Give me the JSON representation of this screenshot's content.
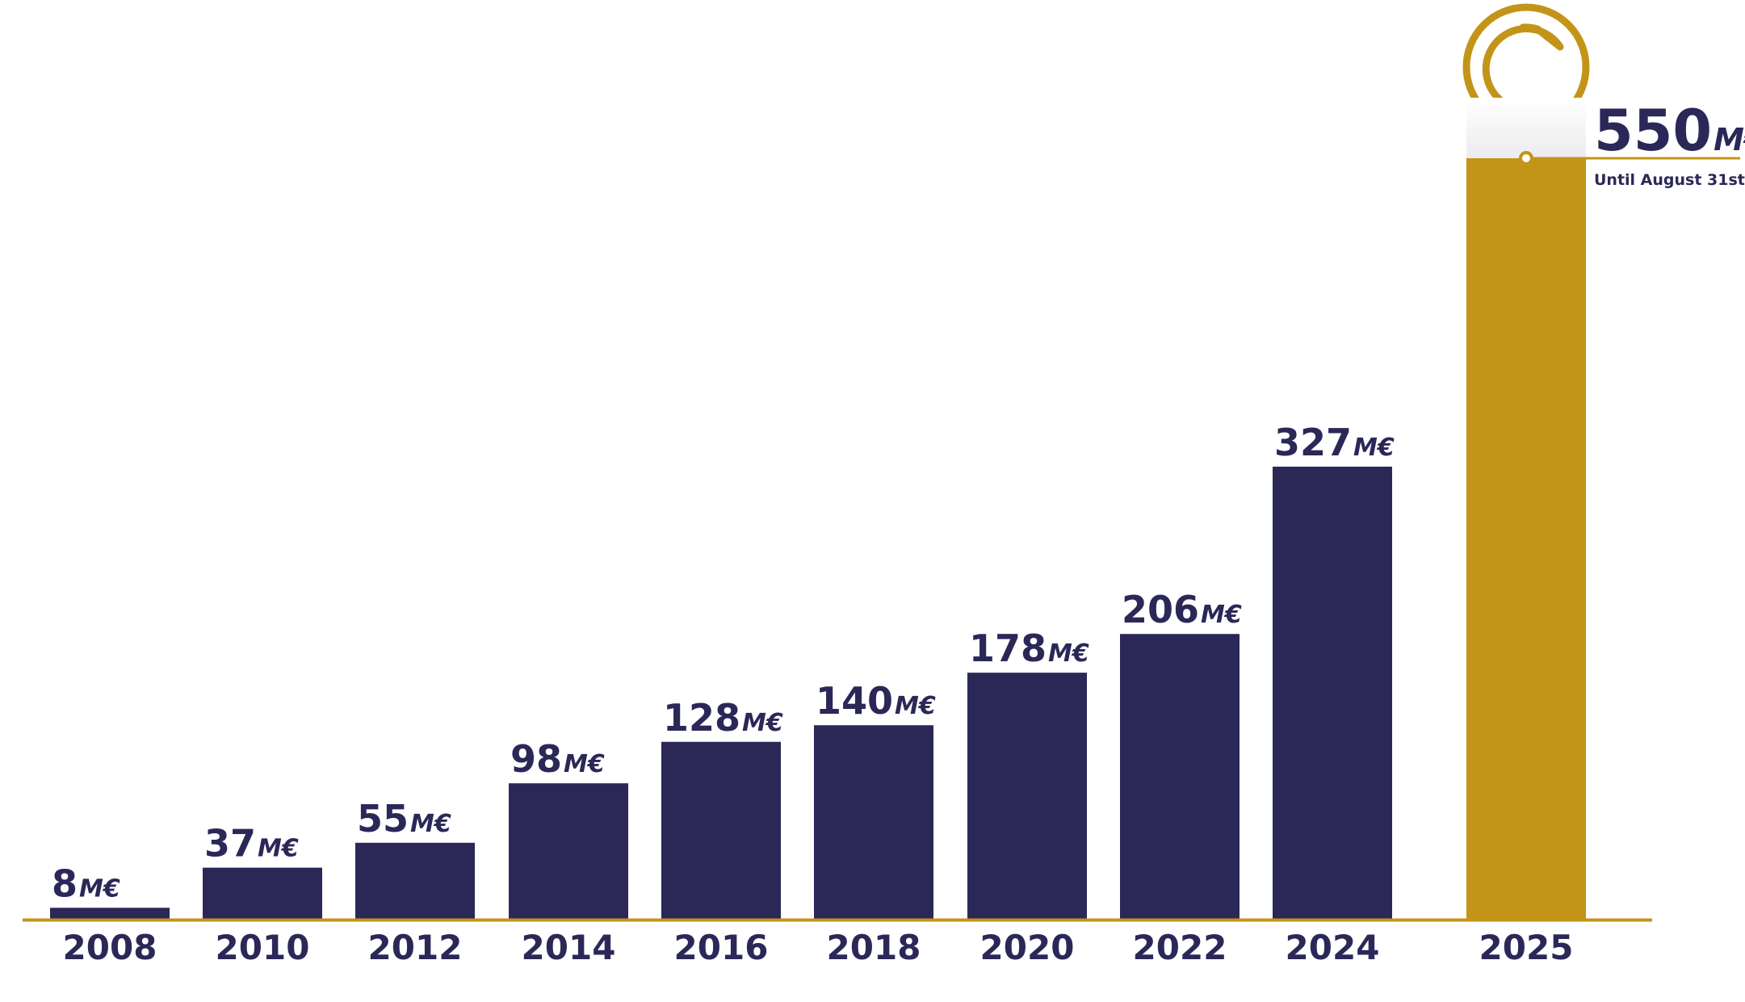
{
  "chart_data": {
    "type": "bar",
    "categories": [
      "2008",
      "2010",
      "2012",
      "2014",
      "2016",
      "2018",
      "2020",
      "2022",
      "2024",
      "2025"
    ],
    "values": [
      8,
      37,
      55,
      98,
      128,
      140,
      178,
      206,
      327,
      550
    ],
    "unit": "M€",
    "title": "",
    "xlabel": "",
    "ylabel": "",
    "ylim": [
      0,
      550
    ],
    "grid": false,
    "legend": "none",
    "highlight": {
      "category": "2025",
      "note": "Until August 31st"
    },
    "colors": {
      "bar": "#2b2858",
      "highlight": "#c39418",
      "text": "#2b2858",
      "baseline": "#c39418"
    }
  },
  "icons": {
    "logo": "circle-logo-icon"
  }
}
